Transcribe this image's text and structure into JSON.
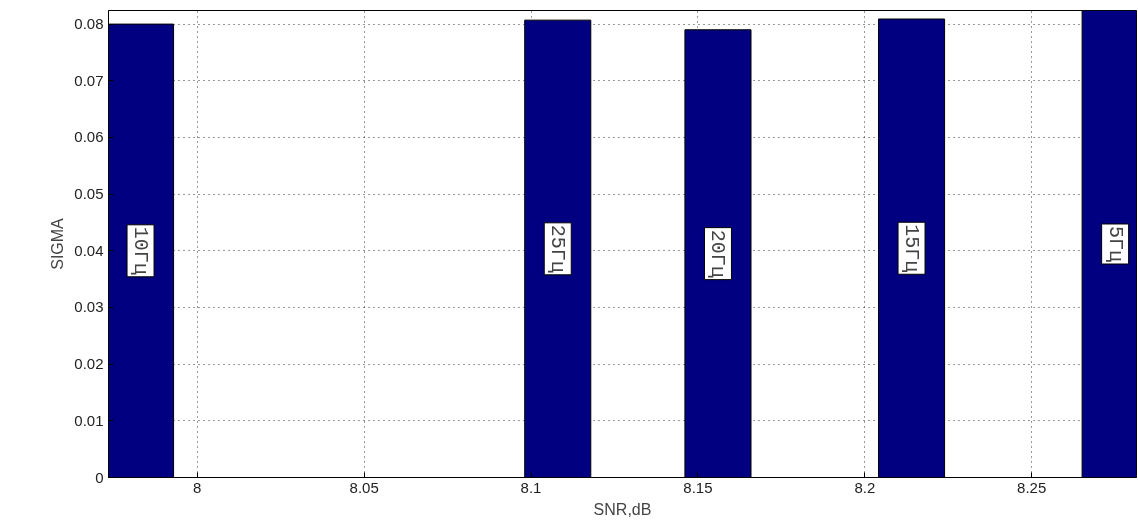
{
  "chart_data": {
    "type": "bar",
    "xlabel": "SNR,dB",
    "ylabel": "SIGMA",
    "x": [
      7.983,
      8.108,
      8.156,
      8.214,
      8.275
    ],
    "values": [
      0.08,
      0.0807,
      0.079,
      0.0809,
      0.0824
    ],
    "color": "#000080",
    "xlim": [
      7.9734,
      8.2814
    ],
    "xticks": [
      8,
      8.05,
      8.1,
      8.15,
      8.2,
      8.25
    ],
    "ylim": [
      0,
      0.0824
    ],
    "yticks": [
      0,
      0.01,
      0.02,
      0.03,
      0.04,
      0.05,
      0.06,
      0.07,
      0.08
    ],
    "grid": true,
    "annotations": [
      "10Гц",
      "25Гц",
      "20Гц",
      "15Гц",
      "5Гц"
    ]
  }
}
